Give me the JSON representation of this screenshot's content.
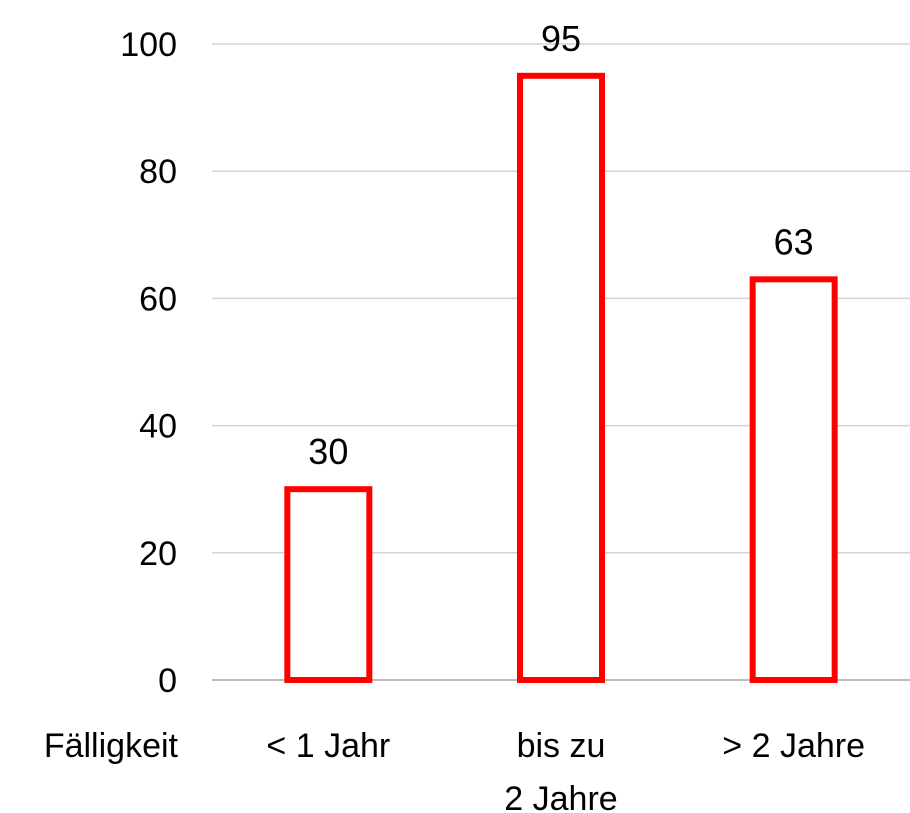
{
  "chart_data": {
    "type": "bar",
    "categories": [
      "< 1 Jahr",
      "bis zu 2 Jahre",
      "> 2 Jahre"
    ],
    "category_lines": [
      [
        "< 1 Jahr"
      ],
      [
        "bis zu",
        "2 Jahre"
      ],
      [
        "> 2 Jahre"
      ]
    ],
    "values": [
      30,
      95,
      63
    ],
    "row_label": "Fälligkeit",
    "title": "",
    "xlabel": "",
    "ylabel": "",
    "ylim": [
      0,
      100
    ],
    "yticks": [
      0,
      20,
      40,
      60,
      80,
      100
    ],
    "grid": true,
    "legend": "none",
    "bar_fill": "#ffffff",
    "bar_stroke": "#ff0000"
  }
}
